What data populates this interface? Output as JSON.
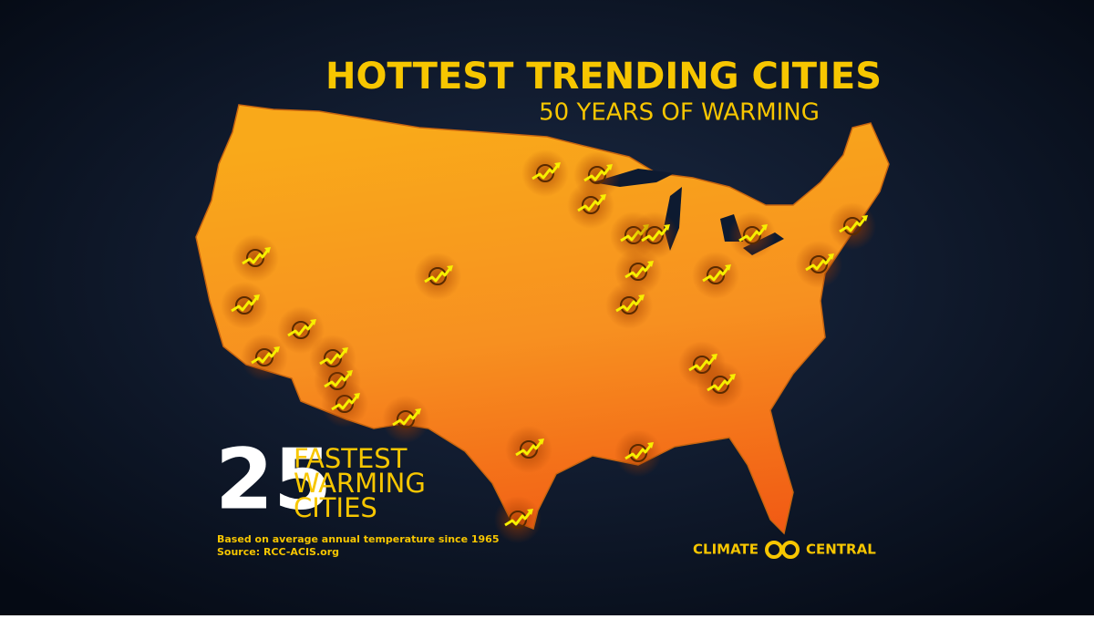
{
  "header": {
    "title": "HOTTEST TRENDING CITIES",
    "subtitle": "50 YEARS OF WARMING"
  },
  "callout": {
    "count": 25,
    "lines": [
      "FASTEST",
      "WARMING",
      "CITIES"
    ]
  },
  "notes": [
    "Based on average annual temperature since 1965",
    "Source: RCC-ACIS.org"
  ],
  "logo": {
    "left": "CLIMATE",
    "right": "CENTRAL"
  }
}
